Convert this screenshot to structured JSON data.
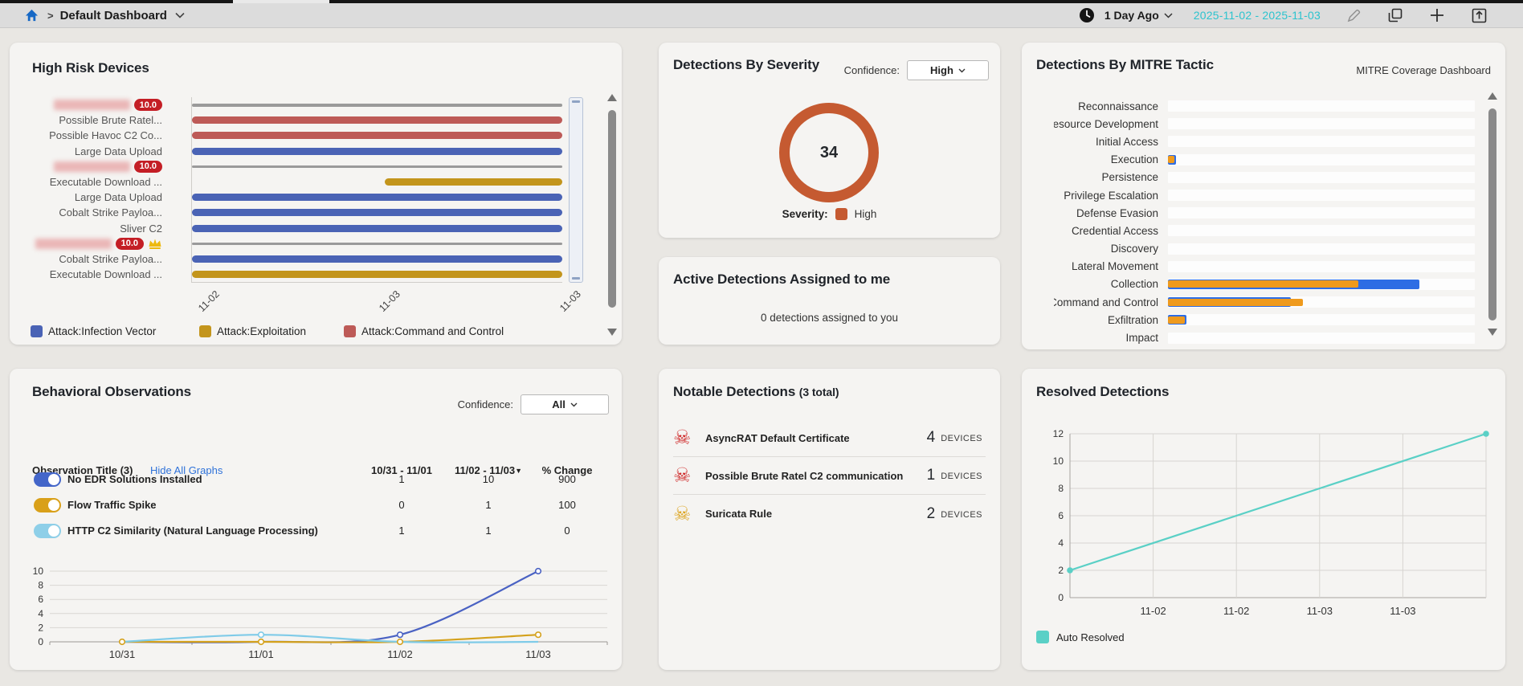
{
  "topbar": {
    "breadcrumb_separator": ">",
    "dashboard_title": "Default Dashboard",
    "time_preset": "1 Day Ago",
    "date_range": "2025-11-02 - 2025-11-03"
  },
  "high_risk_devices": {
    "title": "High Risk Devices",
    "rows": [
      {
        "kind": "device",
        "redacted": true,
        "score": "10.0",
        "crown": false
      },
      {
        "kind": "detection",
        "label": "Possible Brute Ratel...",
        "series": "command_control",
        "start": 0,
        "end": 100
      },
      {
        "kind": "detection",
        "label": "Possible Havoc C2 Co...",
        "series": "command_control",
        "start": 0,
        "end": 100
      },
      {
        "kind": "detection",
        "label": "Large Data Upload",
        "series": "infection_vector",
        "start": 0,
        "end": 100
      },
      {
        "kind": "device",
        "redacted": true,
        "score": "10.0",
        "crown": false
      },
      {
        "kind": "detection",
        "label": "Executable Download ...",
        "series": "exploitation",
        "start": 52,
        "end": 100
      },
      {
        "kind": "detection",
        "label": "Large Data Upload",
        "series": "infection_vector",
        "start": 0,
        "end": 100
      },
      {
        "kind": "detection",
        "label": "Cobalt Strike Payloa...",
        "series": "infection_vector",
        "start": 0,
        "end": 100
      },
      {
        "kind": "detection",
        "label": "Sliver C2",
        "series": "infection_vector",
        "start": 0,
        "end": 100
      },
      {
        "kind": "device",
        "redacted": true,
        "score": "10.0",
        "crown": true
      },
      {
        "kind": "detection",
        "label": "Cobalt Strike Payloa...",
        "series": "infection_vector",
        "start": 0,
        "end": 100
      },
      {
        "kind": "detection",
        "label": "Executable Download ...",
        "series": "exploitation",
        "start": 0,
        "end": 100
      }
    ],
    "series_colors": {
      "infection_vector": "#4a63b5",
      "exploitation": "#c3951c",
      "command_control": "#bd5a57"
    },
    "x_labels": [
      "11-02",
      "11-03",
      "11-03"
    ],
    "legend": [
      {
        "label": "Attack:Infection Vector",
        "color": "#4a63b5"
      },
      {
        "label": "Attack:Exploitation",
        "color": "#c3951c"
      },
      {
        "label": "Attack:Command and Control",
        "color": "#bd5a57"
      }
    ]
  },
  "detections_by_severity": {
    "title": "Detections By Severity",
    "confidence_label": "Confidence:",
    "confidence_value": "High",
    "total": "34",
    "severity_label": "Severity:",
    "severity_value": "High",
    "severity_color": "#c55a31"
  },
  "active_detections": {
    "title": "Active Detections Assigned to me",
    "message": "0 detections assigned to you"
  },
  "notable_detections": {
    "title": "Notable Detections",
    "total_suffix": "(3 total)",
    "rows": [
      {
        "name": "AsyncRAT Default Certificate",
        "count": "4",
        "unit": "DEVICES",
        "icon_color": "#cf2a2a"
      },
      {
        "name": "Possible Brute Ratel C2 communication",
        "count": "1",
        "unit": "DEVICES",
        "icon_color": "#cf2a2a"
      },
      {
        "name": "Suricata Rule",
        "count": "2",
        "unit": "DEVICES",
        "icon_color": "#dca41e"
      }
    ]
  },
  "mitre": {
    "title": "Detections By MITRE Tactic",
    "link_label": "MITRE Coverage Dashboard",
    "colors": {
      "blue": "#2e6de4",
      "orange": "#ef9a1d"
    },
    "chart_data": {
      "type": "bar",
      "categories": [
        "Reconnaissance",
        "Resource Development",
        "Initial Access",
        "Execution",
        "Persistence",
        "Privilege Escalation",
        "Defense Evasion",
        "Credential Access",
        "Discovery",
        "Lateral Movement",
        "Collection",
        "Command and Control",
        "Exfiltration",
        "Impact"
      ],
      "series": [
        {
          "name": "blue",
          "values": [
            0,
            0,
            0,
            2.5,
            0,
            0,
            0,
            0,
            0,
            0,
            82,
            40,
            6,
            0
          ]
        },
        {
          "name": "orange",
          "values": [
            0,
            0,
            0,
            2,
            0,
            0,
            0,
            0,
            0,
            0,
            62,
            44,
            5.5,
            0
          ]
        }
      ]
    }
  },
  "resolved": {
    "title": "Resolved Detections",
    "legend_label": "Auto Resolved",
    "color": "#5ad0c6",
    "chart_data": {
      "type": "line",
      "y_ticks": [
        12,
        10,
        8,
        6,
        4,
        2,
        0
      ],
      "x_labels": [
        "11-02",
        "11-02",
        "11-03",
        "11-03"
      ],
      "series": [
        {
          "name": "Auto Resolved",
          "start_value": 2,
          "end_value": 12
        }
      ],
      "ylim": [
        0,
        12
      ]
    }
  },
  "behavioral": {
    "title": "Behavioral Observations",
    "confidence_label": "Confidence:",
    "confidence_value": "All",
    "header": {
      "col_title": "Observation Title (3)",
      "link": "Hide All Graphs",
      "col_range1": "10/31 - 11/01",
      "col_range2": "11/02 - 11/03",
      "sort_indicator": "▼",
      "col_change": "% Change"
    },
    "rows": [
      {
        "label": "No EDR Solutions Installed",
        "toggle_color": "#4466c9",
        "v1": "1",
        "v2": "10",
        "v3": "900"
      },
      {
        "label": "Flow Traffic Spike",
        "toggle_color": "#d9a019",
        "v1": "0",
        "v2": "1",
        "v3": "100"
      },
      {
        "label": "HTTP C2 Similarity (Natural Language Processing)",
        "toggle_color": "#8ecfe8",
        "v1": "1",
        "v2": "1",
        "v3": "0"
      }
    ],
    "chart_data": {
      "type": "line",
      "x_labels": [
        "10/31",
        "11/01",
        "11/02",
        "11/03"
      ],
      "y_ticks": [
        10,
        8,
        6,
        4,
        2,
        0
      ],
      "series": [
        {
          "name": "No EDR Solutions Installed",
          "color": "#4a62c3",
          "values": [
            0,
            0,
            1,
            10
          ],
          "dots": [
            2,
            3
          ]
        },
        {
          "name": "Flow Traffic Spike",
          "color": "#d4a11c",
          "values": [
            0,
            0,
            0,
            1
          ],
          "dots": [
            0,
            1,
            2,
            3
          ]
        },
        {
          "name": "HTTP C2 Similarity (Natural Language Processing)",
          "color": "#7fcbe8",
          "values": [
            0,
            1,
            0,
            0
          ],
          "dots": [
            1
          ]
        }
      ],
      "ylim": [
        0,
        10
      ]
    }
  }
}
